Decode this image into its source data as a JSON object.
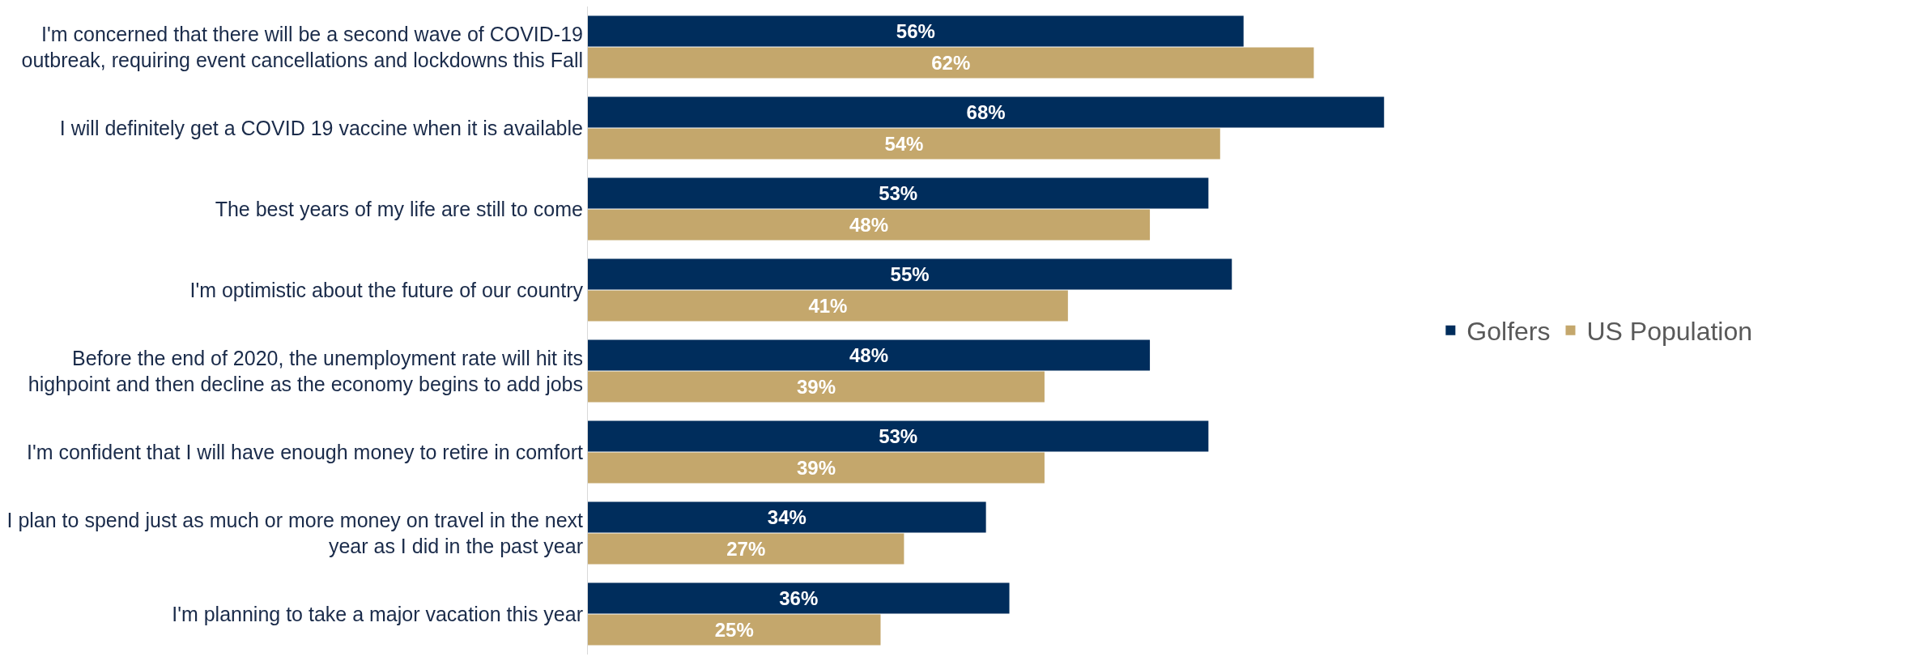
{
  "chart_data": {
    "type": "bar",
    "orientation": "horizontal",
    "legend": "right",
    "grid": false,
    "categories": [
      "I'm concerned that there will be a second wave of COVID-19\noutbreak, requiring event cancellations and lockdowns this Fall",
      "I will definitely get a COVID 19 vaccine when it is available",
      "The best years of my life are still to come",
      "I'm optimistic about the future of our country",
      "Before the end of 2020, the unemployment rate will hit its\nhighpoint and then decline as the economy begins to add jobs",
      "I'm confident that I will have enough money to retire in comfort",
      "I plan to spend just as much or more money on travel in the next\nyear as I did in the past year",
      "I'm planning to take a major vacation this year"
    ],
    "series": [
      {
        "name": "Golfers",
        "color": "#002d5c",
        "values": [
          56,
          68,
          53,
          55,
          48,
          53,
          34,
          36
        ],
        "value_labels": [
          "56%",
          "68%",
          "53%",
          "55%",
          "48%",
          "53%",
          "34%",
          "36%"
        ]
      },
      {
        "name": "US Population",
        "color": "#c4a76c",
        "values": [
          62,
          54,
          48,
          41,
          39,
          39,
          27,
          25
        ],
        "value_labels": [
          "62%",
          "54%",
          "48%",
          "41%",
          "39%",
          "39%",
          "27%",
          "25%"
        ]
      }
    ]
  }
}
